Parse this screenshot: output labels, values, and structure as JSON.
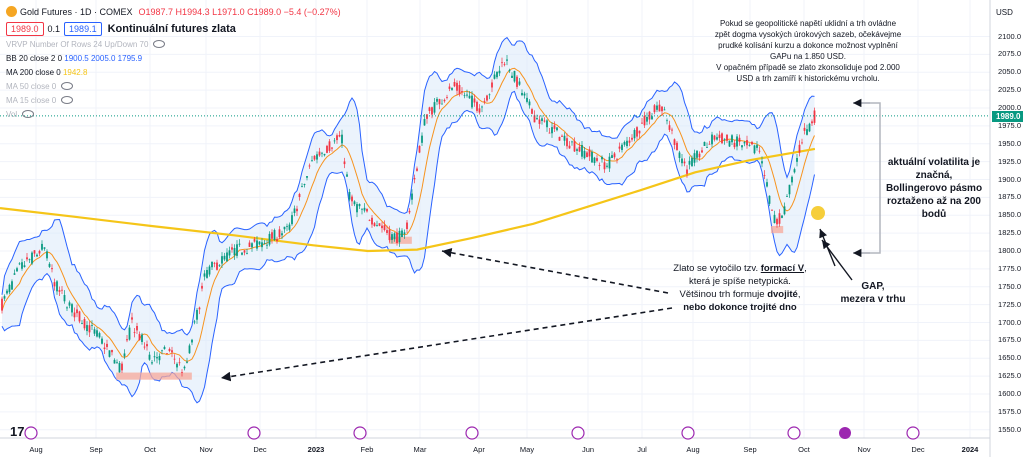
{
  "header": {
    "symbol": "Gold Futures · 1D · COMEX",
    "ohlc": "O1987.7 H1994.3 L1971.0 C1989.0 −5.4 (−0.27%)",
    "bid": "1989.0",
    "spread": "0.1",
    "ask": "1989.1",
    "chart_title": "Kontinuální futures zlata"
  },
  "indicators": [
    {
      "label": "VRVP Number Of Rows 24 Up/Down 70",
      "values": ""
    },
    {
      "label": "BB 20 close 2 0",
      "values": "1900.5  2005.0  1795.9"
    },
    {
      "label": "MA 200 close 0",
      "values": "1942.8"
    },
    {
      "label": "MA 50 close 0",
      "values": ""
    },
    {
      "label": "MA 15 close 0",
      "values": ""
    },
    {
      "label": "Vol",
      "values": ""
    }
  ],
  "price_axis": {
    "currency": "USD",
    "scale_mode": "apoz",
    "ticks": [
      "2100.0",
      "2075.0",
      "2050.0",
      "2025.0",
      "2000.0",
      "1975.0",
      "1950.0",
      "1925.0",
      "1900.0",
      "1875.0",
      "1850.0",
      "1825.0",
      "1800.0",
      "1775.0",
      "1750.0",
      "1725.0",
      "1700.0",
      "1675.0",
      "1650.0",
      "1625.0",
      "1600.0",
      "1575.0",
      "1550.0"
    ],
    "last_price": "1989.0"
  },
  "time_axis": [
    "Aug",
    "Sep",
    "Oct",
    "Nov",
    "Dec",
    "2023",
    "Feb",
    "Mar",
    "Apr",
    "May",
    "Jun",
    "Jul",
    "Aug",
    "Sep",
    "Oct",
    "Nov",
    "Dec",
    "2024"
  ],
  "annotations": {
    "top_note": [
      "Pokud se geopolitické napětí uklidní a trh ovládne",
      "zpět dogma vysokých úrokových sazeb, očekávejme",
      "prudké kolísání kurzu a dokonce možnost vyplnění",
      "GAPu na 1.850 USD.",
      "V opačném případě se zlato zkonsoliduje pod 2.000",
      "USD a trh zamíří k historickému vrcholu."
    ],
    "volatility": [
      "aktuální volatilita je",
      "značná,",
      "Bollingerovo pásmo",
      "roztaženo až na 200",
      "bodů"
    ],
    "formation_a": "Zlato se vytočilo tzv. ",
    "formation_b": "formací V",
    "formation_c": ",",
    "formation_d": "která je spíše netypická.",
    "formation_e": "Většinou trh formuje ",
    "formation_f": "dvojité",
    "formation_g": ",",
    "formation_h": "nebo dokonce trojité dno",
    "gap": [
      "GAP,",
      "mezera v trhu"
    ]
  },
  "chart_data": {
    "type": "candlestick",
    "title": "Gold Futures · 1D · COMEX",
    "ylabel": "USD",
    "ylim": [
      1540,
      2115
    ],
    "x_labels": [
      "Aug",
      "Sep",
      "Oct",
      "Nov",
      "Dec",
      "2023",
      "Feb",
      "Mar",
      "Apr",
      "May",
      "Jun",
      "Jul",
      "Aug",
      "Sep",
      "Oct",
      "Nov",
      "Dec",
      "2024"
    ],
    "price_path": [
      {
        "date": "2022-07-21",
        "close": 1720
      },
      {
        "date": "2022-08-01",
        "close": 1775
      },
      {
        "date": "2022-08-15",
        "close": 1805
      },
      {
        "date": "2022-08-22",
        "close": 1750
      },
      {
        "date": "2022-09-01",
        "close": 1715
      },
      {
        "date": "2022-09-15",
        "close": 1680
      },
      {
        "date": "2022-09-28",
        "close": 1635
      },
      {
        "date": "2022-10-04",
        "close": 1700
      },
      {
        "date": "2022-10-15",
        "close": 1650
      },
      {
        "date": "2022-10-25",
        "close": 1660
      },
      {
        "date": "2022-11-03",
        "close": 1630
      },
      {
        "date": "2022-11-15",
        "close": 1770
      },
      {
        "date": "2022-12-01",
        "close": 1800
      },
      {
        "date": "2022-12-15",
        "close": 1810
      },
      {
        "date": "2023-01-01",
        "close": 1830
      },
      {
        "date": "2023-01-15",
        "close": 1930
      },
      {
        "date": "2023-01-31",
        "close": 1960
      },
      {
        "date": "2023-02-05",
        "close": 1870
      },
      {
        "date": "2023-02-20",
        "close": 1840
      },
      {
        "date": "2023-03-01",
        "close": 1820
      },
      {
        "date": "2023-03-08",
        "close": 1820
      },
      {
        "date": "2023-03-20",
        "close": 1990
      },
      {
        "date": "2023-04-05",
        "close": 2030
      },
      {
        "date": "2023-04-20",
        "close": 2000
      },
      {
        "date": "2023-05-04",
        "close": 2070
      },
      {
        "date": "2023-05-20",
        "close": 1990
      },
      {
        "date": "2023-06-05",
        "close": 1960
      },
      {
        "date": "2023-06-20",
        "close": 1935
      },
      {
        "date": "2023-07-01",
        "close": 1920
      },
      {
        "date": "2023-07-20",
        "close": 1975
      },
      {
        "date": "2023-07-31",
        "close": 2005
      },
      {
        "date": "2023-08-15",
        "close": 1915
      },
      {
        "date": "2023-08-31",
        "close": 1960
      },
      {
        "date": "2023-09-15",
        "close": 1950
      },
      {
        "date": "2023-09-25",
        "close": 1940
      },
      {
        "date": "2023-10-05",
        "close": 1835
      },
      {
        "date": "2023-10-10",
        "close": 1860
      },
      {
        "date": "2023-10-20",
        "close": 1960
      },
      {
        "date": "2023-10-27",
        "close": 1989
      }
    ],
    "series": [
      {
        "name": "MA 200 close 0",
        "points": [
          {
            "date": "2022-07-21",
            "value": 1860
          },
          {
            "date": "2022-09-01",
            "value": 1848
          },
          {
            "date": "2022-10-15",
            "value": 1835
          },
          {
            "date": "2022-12-01",
            "value": 1822
          },
          {
            "date": "2023-01-15",
            "value": 1808
          },
          {
            "date": "2023-02-15",
            "value": 1800
          },
          {
            "date": "2023-03-15",
            "value": 1802
          },
          {
            "date": "2023-04-15",
            "value": 1818
          },
          {
            "date": "2023-05-20",
            "value": 1838
          },
          {
            "date": "2023-06-20",
            "value": 1862
          },
          {
            "date": "2023-07-20",
            "value": 1885
          },
          {
            "date": "2023-08-20",
            "value": 1910
          },
          {
            "date": "2023-09-20",
            "value": 1927
          },
          {
            "date": "2023-10-27",
            "value": 1942.8
          }
        ]
      },
      {
        "name": "BB 20 close 2 0",
        "values": {
          "basis": 1900.5,
          "upper": 2005.0,
          "lower": 1795.9
        }
      }
    ],
    "last_price": 1989.0,
    "zones": [
      {
        "label": "",
        "from": "2022-09-25",
        "to": "2022-11-07",
        "low": 1620,
        "high": 1630
      },
      {
        "label": "",
        "from": "2023-02-27",
        "to": "2023-03-12",
        "low": 1810,
        "high": 1820
      },
      {
        "label": "",
        "from": "2023-10-02",
        "to": "2023-10-09",
        "low": 1825,
        "high": 1835
      }
    ]
  }
}
